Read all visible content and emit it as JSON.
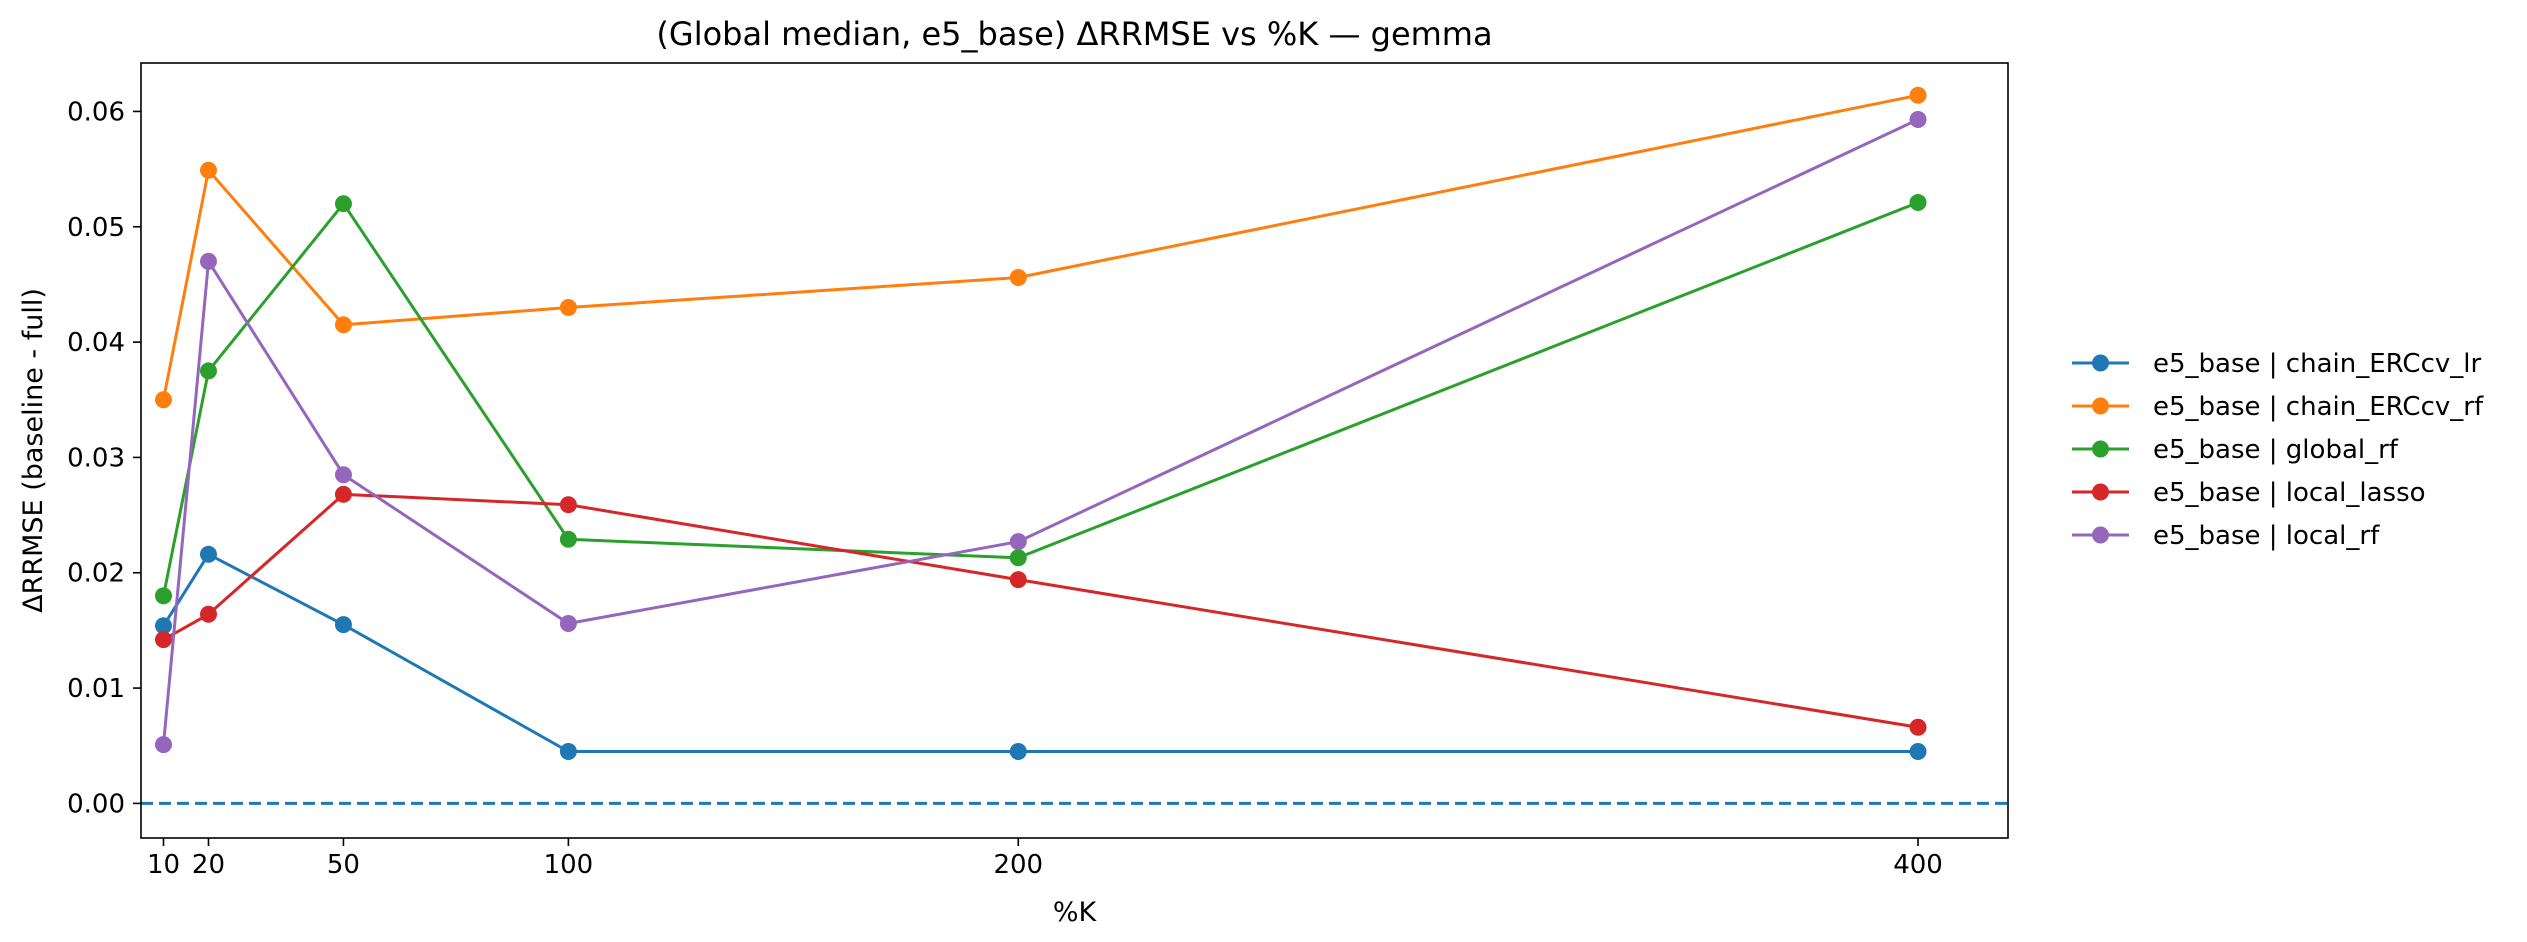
{
  "chart_data": {
    "type": "line",
    "title": "(Global median, e5_base) ΔRRMSE vs %K — gemma",
    "xlabel": "%K",
    "ylabel": "ΔRRMSE (baseline - full)",
    "x": [
      10,
      20,
      50,
      100,
      200,
      400
    ],
    "xticks": [
      10,
      20,
      50,
      100,
      200,
      400
    ],
    "xlim": [
      5,
      420
    ],
    "yticks": [
      0.0,
      0.01,
      0.02,
      0.03,
      0.04,
      0.05,
      0.06
    ],
    "ytick_labels": [
      "0.00",
      "0.01",
      "0.02",
      "0.03",
      "0.04",
      "0.05",
      "0.06"
    ],
    "ylim": [
      -0.003,
      0.0642
    ],
    "grid": false,
    "legend_position": "outside right",
    "reference_line": {
      "y": 0.0,
      "style": "dashed",
      "color": "#1f77b4"
    },
    "series": [
      {
        "name": "e5_base | chain_ERCcv_lr",
        "color": "#1f77b4",
        "values": [
          0.0154,
          0.0216,
          0.0155,
          0.0045,
          0.0045,
          0.0045
        ]
      },
      {
        "name": "e5_base | chain_ERCcv_rf",
        "color": "#ff7f0e",
        "values": [
          0.035,
          0.0549,
          0.0415,
          0.043,
          0.0456,
          0.0614
        ]
      },
      {
        "name": "e5_base | global_rf",
        "color": "#2ca02c",
        "values": [
          0.018,
          0.0375,
          0.052,
          0.0229,
          0.0213,
          0.0521
        ]
      },
      {
        "name": "e5_base | local_lasso",
        "color": "#d62728",
        "values": [
          0.0142,
          0.0164,
          0.0268,
          0.0259,
          0.0194,
          0.0066
        ]
      },
      {
        "name": "e5_base | local_rf",
        "color": "#9467bd",
        "values": [
          0.0051,
          0.047,
          0.0285,
          0.0156,
          0.0227,
          0.0593
        ]
      }
    ]
  }
}
